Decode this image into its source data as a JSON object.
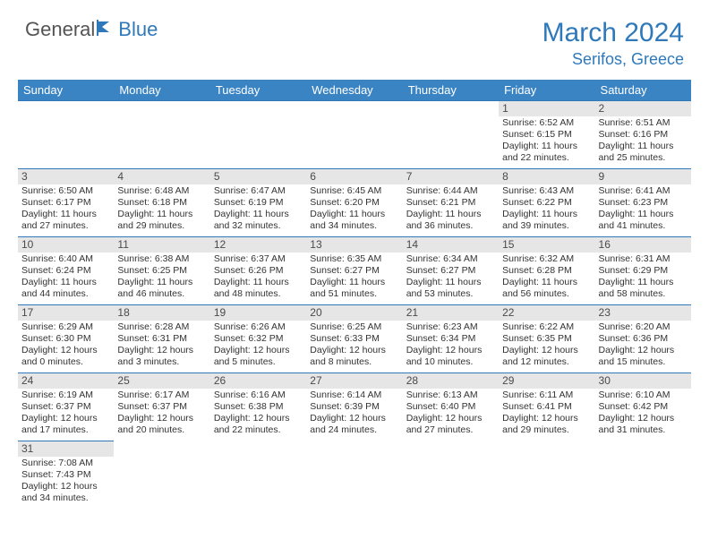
{
  "logo": {
    "part1": "General",
    "part2": "Blue"
  },
  "title": "March 2024",
  "location": "Serifos, Greece",
  "colors": {
    "brand_blue": "#2f79ba",
    "header_blue": "#3b84c4",
    "band_gray": "#e6e6e6",
    "text_gray": "#545454"
  },
  "weekdays": [
    "Sunday",
    "Monday",
    "Tuesday",
    "Wednesday",
    "Thursday",
    "Friday",
    "Saturday"
  ],
  "weeks": [
    [
      null,
      null,
      null,
      null,
      null,
      {
        "n": "1",
        "sr": "Sunrise: 6:52 AM",
        "ss": "Sunset: 6:15 PM",
        "dl1": "Daylight: 11 hours",
        "dl2": "and 22 minutes."
      },
      {
        "n": "2",
        "sr": "Sunrise: 6:51 AM",
        "ss": "Sunset: 6:16 PM",
        "dl1": "Daylight: 11 hours",
        "dl2": "and 25 minutes."
      }
    ],
    [
      {
        "n": "3",
        "sr": "Sunrise: 6:50 AM",
        "ss": "Sunset: 6:17 PM",
        "dl1": "Daylight: 11 hours",
        "dl2": "and 27 minutes."
      },
      {
        "n": "4",
        "sr": "Sunrise: 6:48 AM",
        "ss": "Sunset: 6:18 PM",
        "dl1": "Daylight: 11 hours",
        "dl2": "and 29 minutes."
      },
      {
        "n": "5",
        "sr": "Sunrise: 6:47 AM",
        "ss": "Sunset: 6:19 PM",
        "dl1": "Daylight: 11 hours",
        "dl2": "and 32 minutes."
      },
      {
        "n": "6",
        "sr": "Sunrise: 6:45 AM",
        "ss": "Sunset: 6:20 PM",
        "dl1": "Daylight: 11 hours",
        "dl2": "and 34 minutes."
      },
      {
        "n": "7",
        "sr": "Sunrise: 6:44 AM",
        "ss": "Sunset: 6:21 PM",
        "dl1": "Daylight: 11 hours",
        "dl2": "and 36 minutes."
      },
      {
        "n": "8",
        "sr": "Sunrise: 6:43 AM",
        "ss": "Sunset: 6:22 PM",
        "dl1": "Daylight: 11 hours",
        "dl2": "and 39 minutes."
      },
      {
        "n": "9",
        "sr": "Sunrise: 6:41 AM",
        "ss": "Sunset: 6:23 PM",
        "dl1": "Daylight: 11 hours",
        "dl2": "and 41 minutes."
      }
    ],
    [
      {
        "n": "10",
        "sr": "Sunrise: 6:40 AM",
        "ss": "Sunset: 6:24 PM",
        "dl1": "Daylight: 11 hours",
        "dl2": "and 44 minutes."
      },
      {
        "n": "11",
        "sr": "Sunrise: 6:38 AM",
        "ss": "Sunset: 6:25 PM",
        "dl1": "Daylight: 11 hours",
        "dl2": "and 46 minutes."
      },
      {
        "n": "12",
        "sr": "Sunrise: 6:37 AM",
        "ss": "Sunset: 6:26 PM",
        "dl1": "Daylight: 11 hours",
        "dl2": "and 48 minutes."
      },
      {
        "n": "13",
        "sr": "Sunrise: 6:35 AM",
        "ss": "Sunset: 6:27 PM",
        "dl1": "Daylight: 11 hours",
        "dl2": "and 51 minutes."
      },
      {
        "n": "14",
        "sr": "Sunrise: 6:34 AM",
        "ss": "Sunset: 6:27 PM",
        "dl1": "Daylight: 11 hours",
        "dl2": "and 53 minutes."
      },
      {
        "n": "15",
        "sr": "Sunrise: 6:32 AM",
        "ss": "Sunset: 6:28 PM",
        "dl1": "Daylight: 11 hours",
        "dl2": "and 56 minutes."
      },
      {
        "n": "16",
        "sr": "Sunrise: 6:31 AM",
        "ss": "Sunset: 6:29 PM",
        "dl1": "Daylight: 11 hours",
        "dl2": "and 58 minutes."
      }
    ],
    [
      {
        "n": "17",
        "sr": "Sunrise: 6:29 AM",
        "ss": "Sunset: 6:30 PM",
        "dl1": "Daylight: 12 hours",
        "dl2": "and 0 minutes."
      },
      {
        "n": "18",
        "sr": "Sunrise: 6:28 AM",
        "ss": "Sunset: 6:31 PM",
        "dl1": "Daylight: 12 hours",
        "dl2": "and 3 minutes."
      },
      {
        "n": "19",
        "sr": "Sunrise: 6:26 AM",
        "ss": "Sunset: 6:32 PM",
        "dl1": "Daylight: 12 hours",
        "dl2": "and 5 minutes."
      },
      {
        "n": "20",
        "sr": "Sunrise: 6:25 AM",
        "ss": "Sunset: 6:33 PM",
        "dl1": "Daylight: 12 hours",
        "dl2": "and 8 minutes."
      },
      {
        "n": "21",
        "sr": "Sunrise: 6:23 AM",
        "ss": "Sunset: 6:34 PM",
        "dl1": "Daylight: 12 hours",
        "dl2": "and 10 minutes."
      },
      {
        "n": "22",
        "sr": "Sunrise: 6:22 AM",
        "ss": "Sunset: 6:35 PM",
        "dl1": "Daylight: 12 hours",
        "dl2": "and 12 minutes."
      },
      {
        "n": "23",
        "sr": "Sunrise: 6:20 AM",
        "ss": "Sunset: 6:36 PM",
        "dl1": "Daylight: 12 hours",
        "dl2": "and 15 minutes."
      }
    ],
    [
      {
        "n": "24",
        "sr": "Sunrise: 6:19 AM",
        "ss": "Sunset: 6:37 PM",
        "dl1": "Daylight: 12 hours",
        "dl2": "and 17 minutes."
      },
      {
        "n": "25",
        "sr": "Sunrise: 6:17 AM",
        "ss": "Sunset: 6:37 PM",
        "dl1": "Daylight: 12 hours",
        "dl2": "and 20 minutes."
      },
      {
        "n": "26",
        "sr": "Sunrise: 6:16 AM",
        "ss": "Sunset: 6:38 PM",
        "dl1": "Daylight: 12 hours",
        "dl2": "and 22 minutes."
      },
      {
        "n": "27",
        "sr": "Sunrise: 6:14 AM",
        "ss": "Sunset: 6:39 PM",
        "dl1": "Daylight: 12 hours",
        "dl2": "and 24 minutes."
      },
      {
        "n": "28",
        "sr": "Sunrise: 6:13 AM",
        "ss": "Sunset: 6:40 PM",
        "dl1": "Daylight: 12 hours",
        "dl2": "and 27 minutes."
      },
      {
        "n": "29",
        "sr": "Sunrise: 6:11 AM",
        "ss": "Sunset: 6:41 PM",
        "dl1": "Daylight: 12 hours",
        "dl2": "and 29 minutes."
      },
      {
        "n": "30",
        "sr": "Sunrise: 6:10 AM",
        "ss": "Sunset: 6:42 PM",
        "dl1": "Daylight: 12 hours",
        "dl2": "and 31 minutes."
      }
    ],
    [
      {
        "n": "31",
        "sr": "Sunrise: 7:08 AM",
        "ss": "Sunset: 7:43 PM",
        "dl1": "Daylight: 12 hours",
        "dl2": "and 34 minutes."
      },
      null,
      null,
      null,
      null,
      null,
      null
    ]
  ]
}
